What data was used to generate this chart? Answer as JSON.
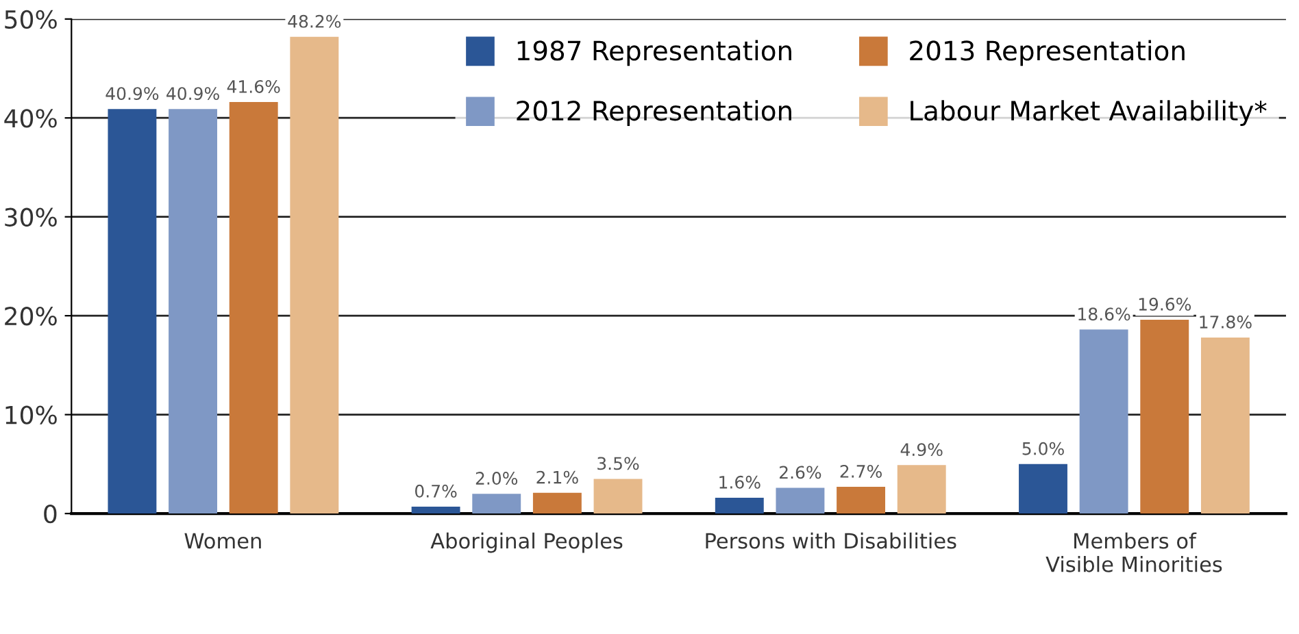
{
  "chart_data": {
    "type": "bar",
    "categories": [
      "Women",
      "Aboriginal Peoples",
      "Persons with Disabilities",
      "Members of\nVisible Minorities"
    ],
    "series": [
      {
        "name": "1987 Representation",
        "color": "#2b5696",
        "values": [
          40.9,
          0.7,
          1.6,
          5.0
        ],
        "value_labels": [
          "40.9%",
          "0.7%",
          "1.6%",
          "5.0%"
        ]
      },
      {
        "name": "2012 Representation",
        "color": "#7f98c5",
        "values": [
          40.9,
          2.0,
          2.6,
          18.6
        ],
        "value_labels": [
          "40.9%",
          "2.0%",
          "2.6%",
          "18.6%"
        ]
      },
      {
        "name": "2013 Representation",
        "color": "#c9793a",
        "values": [
          41.6,
          2.1,
          2.7,
          19.6
        ],
        "value_labels": [
          "41.6%",
          "2.1%",
          "2.7%",
          "19.6%"
        ]
      },
      {
        "name": "Labour Market Availability*",
        "color": "#e6b98a",
        "values": [
          48.2,
          3.5,
          4.9,
          17.8
        ],
        "value_labels": [
          "48.2%",
          "3.5%",
          "4.9%",
          "17.8%"
        ]
      }
    ],
    "ylim": [
      0,
      50
    ],
    "yticks": [
      0,
      {
        "value": 10,
        "label": "10%"
      },
      {
        "value": 20,
        "label": "20%"
      },
      {
        "value": 30,
        "label": "30%"
      },
      {
        "value": 40,
        "label": "40%"
      },
      {
        "value": 50,
        "label": "50%"
      }
    ],
    "grid": "y",
    "legend": "top right"
  }
}
